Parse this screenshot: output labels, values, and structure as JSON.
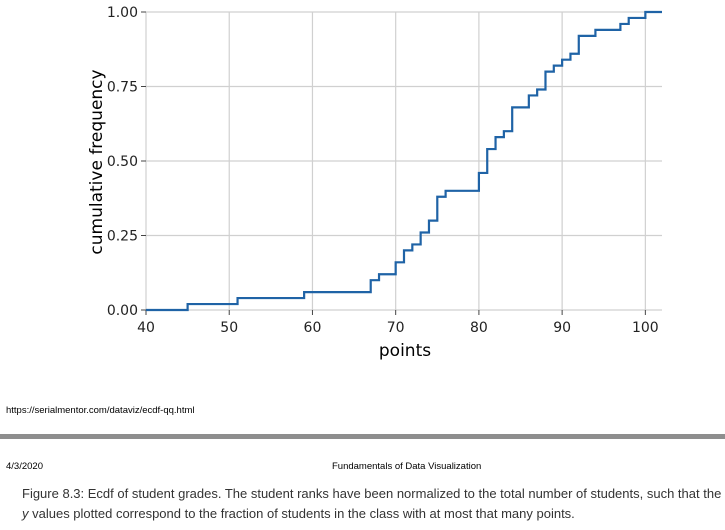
{
  "chart_data": {
    "type": "line",
    "step": true,
    "xlabel": "points",
    "ylabel": "cumulative frequency",
    "xlim": [
      40,
      102
    ],
    "ylim": [
      0,
      1
    ],
    "x_ticks": [
      40,
      50,
      60,
      70,
      80,
      90,
      100
    ],
    "y_ticks": [
      0.0,
      0.25,
      0.5,
      0.75,
      1.0
    ],
    "x_tick_labels": [
      "40",
      "50",
      "60",
      "70",
      "80",
      "90",
      "100"
    ],
    "y_tick_labels": [
      "0.00",
      "0.25",
      "0.50",
      "0.75",
      "1.00"
    ],
    "grid": true,
    "line_color": "#1f63a6",
    "series": [
      {
        "x": [
          40,
          45,
          51,
          59,
          67,
          68,
          70,
          71,
          72,
          73,
          74,
          75,
          76,
          80,
          81,
          82,
          83,
          84,
          86,
          87,
          88,
          89,
          90,
          91,
          92,
          94,
          97,
          98,
          100,
          102
        ],
        "y": [
          0.0,
          0.02,
          0.04,
          0.06,
          0.1,
          0.12,
          0.16,
          0.2,
          0.22,
          0.26,
          0.3,
          0.38,
          0.4,
          0.46,
          0.54,
          0.58,
          0.6,
          0.68,
          0.72,
          0.74,
          0.8,
          0.82,
          0.84,
          0.86,
          0.92,
          0.94,
          0.96,
          0.98,
          1.0,
          1.0
        ]
      }
    ]
  },
  "footer": {
    "url": "https://serialmentor.com/dataviz/ecdf-qq.html",
    "date": "4/3/2020",
    "doc_title": "Fundamentals of Data Visualization",
    "caption_part1": "Figure 8.3: Ecdf of student grades. The student ranks have been normalized to the total number of students, such that the ",
    "caption_italic": "y",
    "caption_part2": " values plotted correspond to the fraction of students in the class with at most that many points."
  }
}
